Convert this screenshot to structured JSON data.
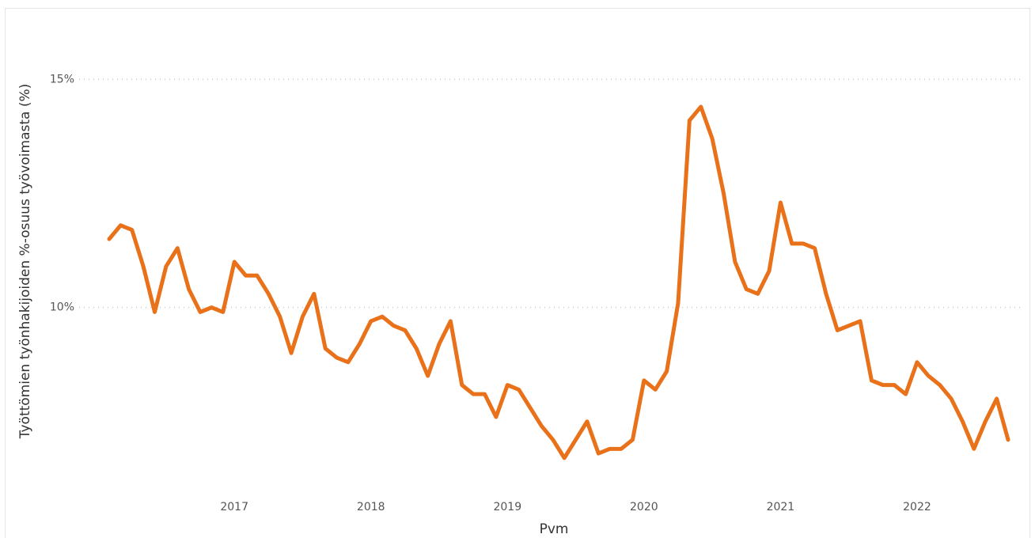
{
  "chart_data": {
    "type": "line",
    "x_label": "Pvm",
    "y_label": "Työttömien työnhakijoiden %-osuus työvoimasta (%)",
    "categories": [
      null,
      null,
      null,
      null,
      null,
      null,
      null,
      null,
      null,
      null,
      null,
      "2017",
      null,
      null,
      null,
      null,
      null,
      null,
      null,
      null,
      null,
      null,
      null,
      "2018",
      null,
      null,
      null,
      null,
      null,
      null,
      null,
      null,
      null,
      null,
      null,
      "2019",
      null,
      null,
      null,
      null,
      null,
      null,
      null,
      null,
      null,
      null,
      null,
      "2020",
      null,
      null,
      null,
      null,
      null,
      null,
      null,
      null,
      null,
      null,
      null,
      "2021",
      null,
      null,
      null,
      null,
      null,
      null,
      null,
      null,
      null,
      null,
      null,
      "2022",
      null,
      null,
      null,
      null,
      null,
      null,
      null,
      null
    ],
    "series": [
      {
        "color": "#e8711a",
        "values": [
          11.5,
          11.8,
          11.7,
          10.9,
          9.9,
          10.9,
          11.3,
          10.4,
          9.9,
          10.0,
          9.9,
          11.0,
          10.7,
          10.7,
          10.3,
          9.8,
          9.0,
          9.8,
          10.3,
          9.1,
          8.9,
          8.8,
          9.2,
          9.7,
          9.8,
          9.6,
          9.5,
          9.1,
          8.5,
          9.2,
          9.7,
          8.3,
          8.1,
          8.1,
          7.6,
          8.3,
          8.2,
          7.8,
          7.4,
          7.1,
          6.7,
          7.1,
          7.5,
          6.8,
          6.9,
          6.9,
          7.1,
          8.4,
          8.2,
          8.6,
          10.1,
          14.1,
          14.4,
          13.7,
          12.5,
          11.0,
          10.4,
          10.3,
          10.8,
          12.3,
          11.4,
          11.4,
          11.3,
          10.3,
          9.5,
          9.6,
          9.7,
          8.4,
          8.3,
          8.3,
          8.1,
          8.8,
          8.5,
          8.3,
          8.0,
          7.5,
          6.9,
          7.5,
          8.0,
          7.1
        ]
      }
    ],
    "ylim": [
      5.9,
      15.7
    ],
    "yticks": [
      {
        "value": 10,
        "label": "10%"
      },
      {
        "value": 15,
        "label": "15%"
      }
    ],
    "grid": true
  }
}
